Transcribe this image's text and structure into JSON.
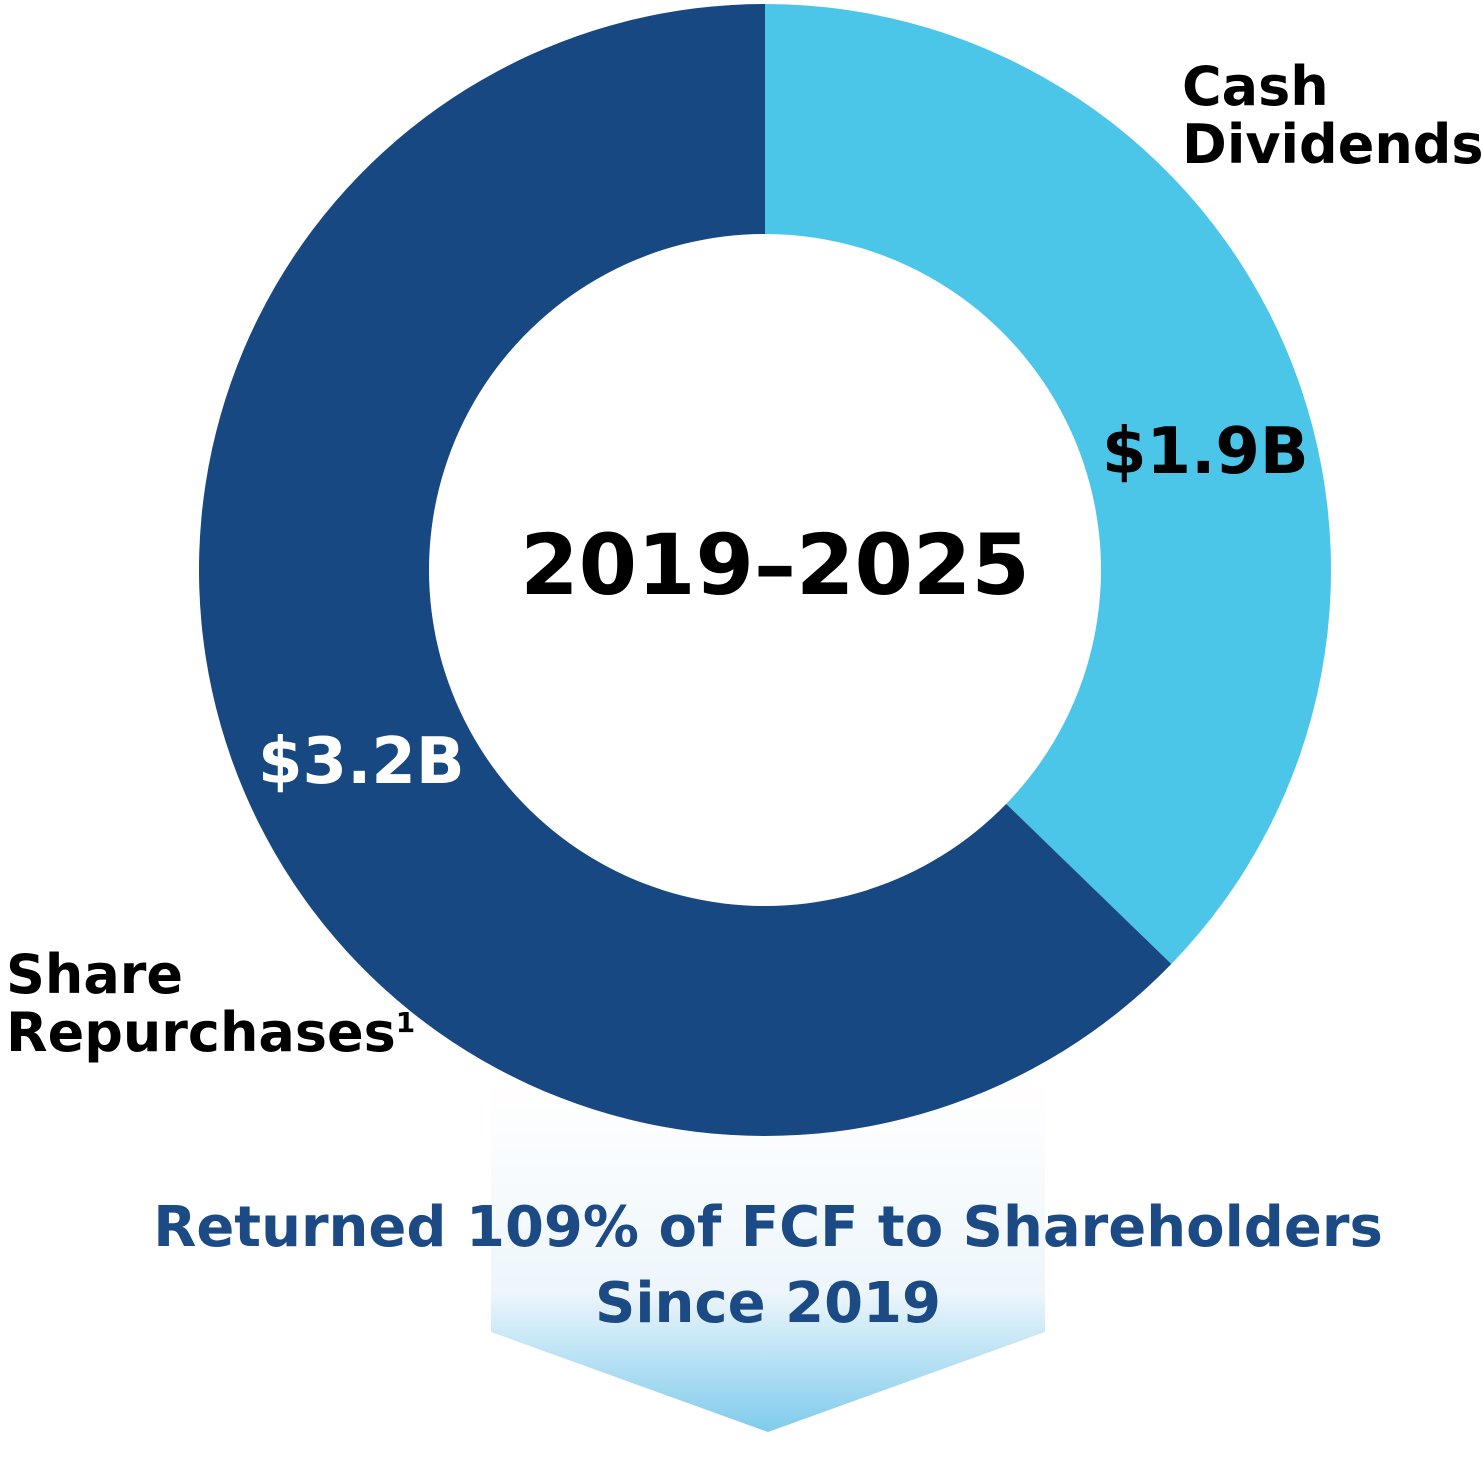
{
  "chart_data": {
    "type": "pie",
    "variant": "donut",
    "center_label": "2019–2025",
    "series": [
      {
        "name": "Cash Dividends",
        "value": 1.9,
        "value_label": "$1.9B",
        "color": "#4bc6e8"
      },
      {
        "name": "Share Repurchases",
        "footnote": "1",
        "value": 3.2,
        "value_label": "$3.2B",
        "color": "#184882"
      }
    ],
    "unit": "$B",
    "legend": "none"
  },
  "callout": {
    "line1": "Returned 109% of FCF to Shareholders",
    "line2": "Since 2019",
    "text_color": "#1b4a85",
    "arrow_color_top": "#ffffff",
    "arrow_color_bottom": "#7fcbec"
  }
}
